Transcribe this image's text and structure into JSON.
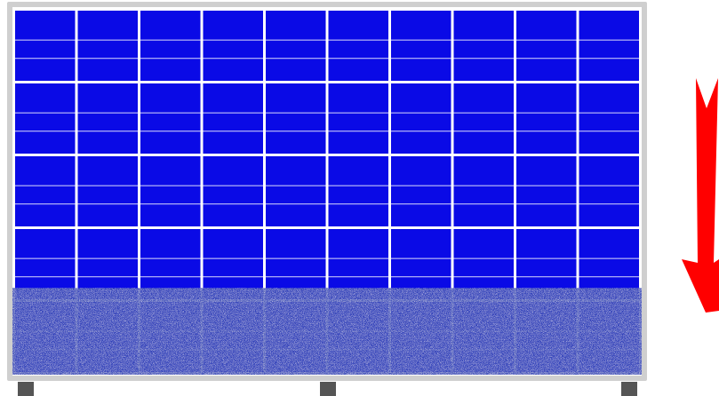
{
  "panel": {
    "columns": 10,
    "rows": 5,
    "cell_color": "#0a0ae6",
    "frame_color": "#cfcfcf",
    "grid_line_color": "#ffffff",
    "soiled_fraction": 0.24,
    "soiled_color": "#3848b8",
    "foot_color": "#555555",
    "feet_count": 3
  },
  "arrow": {
    "direction": "down",
    "color": "#ff0000",
    "icon": "arrow-down-icon"
  }
}
